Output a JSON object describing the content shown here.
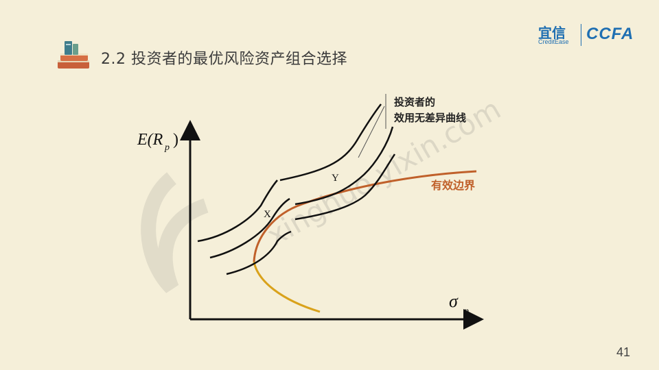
{
  "slide": {
    "title": "2.2 投资者的最优风险资产组合选择",
    "page_number": "41",
    "background_color": "#f5efd9"
  },
  "brand": {
    "name_cn": "宜信",
    "name_en": "CreditEase",
    "mark": "CCFA",
    "color": "#1f6fb2"
  },
  "diagram": {
    "y_axis_label": "E(R",
    "y_axis_subscript": "p",
    "x_axis_label": "σ",
    "x_axis_subscript": "p",
    "indifference_label_line1": "投资者的",
    "indifference_label_line2": "效用无差异曲线",
    "frontier_label": "有效边界",
    "point_x": "X",
    "point_y": "Y",
    "frontier_color": "#c0602a",
    "lower_branch_color": "#d9a21b",
    "curve_color": "#111111"
  },
  "watermark": {
    "url_text": "xinghuo.yixin.com"
  },
  "icons": {
    "title_icon": "books-icon"
  }
}
